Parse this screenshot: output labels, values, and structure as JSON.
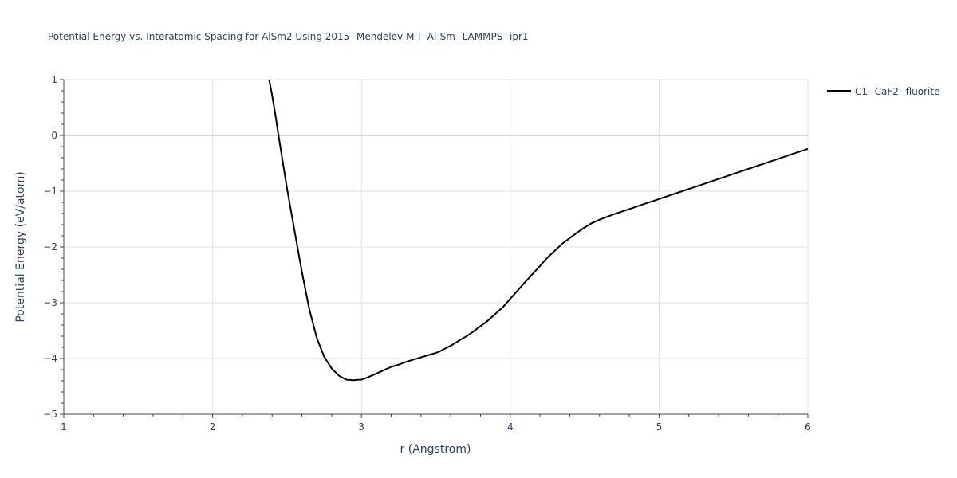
{
  "chart_data": {
    "type": "line",
    "title": "Potential Energy vs. Interatomic Spacing for AlSm2 Using 2015--Mendelev-M-I--Al-Sm--LAMMPS--ipr1",
    "xlabel": "r (Angstrom)",
    "ylabel": "Potential Energy (eV/atom)",
    "xlim": [
      1,
      6
    ],
    "ylim": [
      -5,
      1
    ],
    "x_ticks": [
      1,
      2,
      3,
      4,
      5,
      6
    ],
    "y_ticks": [
      1,
      0,
      -1,
      -2,
      -3,
      -4,
      -5
    ],
    "x_tick_labels": [
      "1",
      "2",
      "3",
      "4",
      "5",
      "6"
    ],
    "y_tick_labels": [
      "1",
      "0",
      "−1",
      "−2",
      "−3",
      "−4",
      "−5"
    ],
    "grid": true,
    "legend_position": "top-right",
    "series": [
      {
        "name": "C1--CaF2--fluorite",
        "color": "#000000",
        "x": [
          2.38,
          2.4,
          2.42,
          2.44,
          2.47,
          2.5,
          2.55,
          2.6,
          2.65,
          2.7,
          2.75,
          2.8,
          2.85,
          2.9,
          2.95,
          2.98,
          3.0,
          3.03,
          3.05,
          3.1,
          3.15,
          3.2,
          3.25,
          3.3,
          3.4,
          3.5,
          3.52,
          3.6,
          3.7,
          3.75,
          3.85,
          3.95,
          4.0,
          4.1,
          4.2,
          4.25,
          4.35,
          4.45,
          4.5,
          4.55,
          4.6,
          4.7,
          4.8,
          4.9,
          5.0,
          5.1,
          5.2,
          5.3,
          5.4,
          5.5,
          5.6,
          5.7,
          5.8,
          5.9,
          6.0
        ],
        "y": [
          1.0,
          0.72,
          0.4,
          0.05,
          -0.45,
          -0.95,
          -1.7,
          -2.45,
          -3.12,
          -3.63,
          -3.97,
          -4.18,
          -4.31,
          -4.38,
          -4.39,
          -4.38,
          -4.38,
          -4.35,
          -4.33,
          -4.27,
          -4.21,
          -4.15,
          -4.11,
          -4.06,
          -3.98,
          -3.9,
          -3.88,
          -3.77,
          -3.61,
          -3.52,
          -3.32,
          -3.08,
          -2.93,
          -2.63,
          -2.34,
          -2.19,
          -1.94,
          -1.74,
          -1.65,
          -1.57,
          -1.51,
          -1.41,
          -1.32,
          -1.23,
          -1.14,
          -1.05,
          -0.96,
          -0.87,
          -0.78,
          -0.69,
          -0.6,
          -0.51,
          -0.42,
          -0.33,
          -0.24
        ]
      }
    ]
  }
}
